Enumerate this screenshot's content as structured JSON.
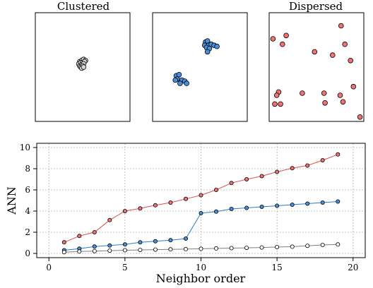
{
  "chart_data": [
    {
      "type": "scatter",
      "title": "Clustered",
      "series": [
        {
          "name": "",
          "color": "#d3d3d3",
          "points": [
            [
              0.47,
              0.55
            ],
            [
              0.49,
              0.56
            ],
            [
              0.51,
              0.57
            ],
            [
              0.53,
              0.56
            ],
            [
              0.46,
              0.53
            ],
            [
              0.48,
              0.54
            ],
            [
              0.5,
              0.54
            ],
            [
              0.52,
              0.55
            ],
            [
              0.47,
              0.51
            ],
            [
              0.49,
              0.52
            ],
            [
              0.51,
              0.53
            ],
            [
              0.48,
              0.5
            ],
            [
              0.5,
              0.51
            ],
            [
              0.49,
              0.49
            ],
            [
              0.51,
              0.5
            ]
          ]
        }
      ]
    },
    {
      "type": "scatter",
      "title": "",
      "series": [
        {
          "name": "",
          "color": "#4a8fdc",
          "points": [
            [
              0.56,
              0.73
            ],
            [
              0.58,
              0.74
            ],
            [
              0.55,
              0.7
            ],
            [
              0.59,
              0.7
            ],
            [
              0.62,
              0.71
            ],
            [
              0.65,
              0.7
            ],
            [
              0.68,
              0.69
            ],
            [
              0.57,
              0.68
            ],
            [
              0.6,
              0.67
            ],
            [
              0.58,
              0.64
            ],
            [
              0.25,
              0.42
            ],
            [
              0.28,
              0.43
            ],
            [
              0.26,
              0.39
            ],
            [
              0.31,
              0.38
            ],
            [
              0.34,
              0.37
            ],
            [
              0.29,
              0.35
            ],
            [
              0.24,
              0.38
            ],
            [
              0.36,
              0.35
            ]
          ]
        }
      ]
    },
    {
      "type": "scatter",
      "title": "Dispersed",
      "series": [
        {
          "name": "",
          "color": "#f07272",
          "points": [
            [
              0.76,
              0.88
            ],
            [
              0.18,
              0.79
            ],
            [
              0.04,
              0.76
            ],
            [
              0.14,
              0.71
            ],
            [
              0.8,
              0.71
            ],
            [
              0.48,
              0.64
            ],
            [
              0.67,
              0.61
            ],
            [
              0.86,
              0.56
            ],
            [
              0.89,
              0.32
            ],
            [
              0.1,
              0.27
            ],
            [
              0.35,
              0.26
            ],
            [
              0.58,
              0.26
            ],
            [
              0.75,
              0.24
            ],
            [
              0.08,
              0.24
            ],
            [
              0.06,
              0.16
            ],
            [
              0.12,
              0.16
            ],
            [
              0.59,
              0.17
            ],
            [
              0.78,
              0.18
            ],
            [
              0.96,
              0.04
            ]
          ]
        }
      ]
    },
    {
      "type": "line",
      "title": "",
      "xlabel": "Neighbor order",
      "ylabel": "ANN",
      "xlim": [
        -0.8,
        20.8
      ],
      "ylim": [
        -0.4,
        10.4
      ],
      "x_ticks": [
        0,
        5,
        10,
        15,
        20
      ],
      "y_ticks": [
        0,
        2,
        4,
        6,
        8,
        10
      ],
      "grid": true,
      "x": [
        1,
        2,
        3,
        4,
        5,
        6,
        7,
        8,
        9,
        10,
        11,
        12,
        13,
        14,
        15,
        16,
        17,
        18,
        19
      ],
      "series": [
        {
          "name": "",
          "line_color": "#e05050",
          "marker_color": "#f07272",
          "values": [
            1.05,
            1.65,
            2.0,
            3.15,
            4.0,
            4.25,
            4.55,
            4.8,
            5.15,
            5.5,
            6.0,
            6.65,
            7.0,
            7.3,
            7.7,
            8.05,
            8.3,
            8.8,
            9.35
          ]
        },
        {
          "name": "",
          "line_color": "#2a7dc4",
          "marker_color": "#4a8fdc",
          "values": [
            0.3,
            0.45,
            0.65,
            0.75,
            0.85,
            1.05,
            1.15,
            1.25,
            1.4,
            3.8,
            3.95,
            4.2,
            4.3,
            4.4,
            4.5,
            4.6,
            4.7,
            4.8,
            4.9
          ]
        },
        {
          "name": "",
          "line_color": "#808080",
          "marker_color": "#ffffff",
          "values": [
            0.12,
            0.18,
            0.22,
            0.26,
            0.3,
            0.33,
            0.36,
            0.38,
            0.41,
            0.44,
            0.47,
            0.5,
            0.53,
            0.56,
            0.6,
            0.64,
            0.72,
            0.8,
            0.85
          ]
        }
      ]
    }
  ]
}
